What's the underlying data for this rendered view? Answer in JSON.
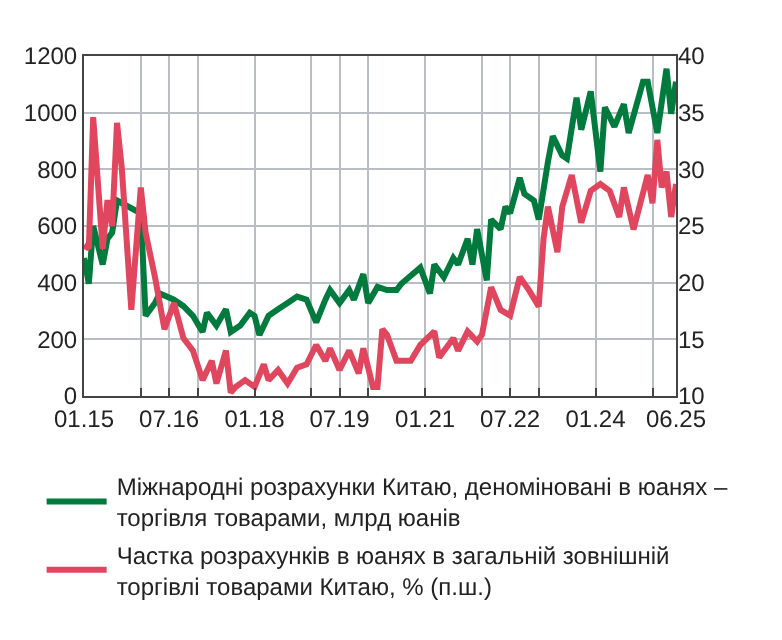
{
  "chart_data": {
    "type": "line",
    "xlim": [
      "2015-01",
      "2025-06"
    ],
    "xticks": [
      {
        "value": "2015-01",
        "label": "01.15"
      },
      {
        "value": "2016-01",
        "label": null
      },
      {
        "value": "2016-07",
        "label": "07.16"
      },
      {
        "value": "2017-01",
        "label": null
      },
      {
        "value": "2018-01",
        "label": "01.18"
      },
      {
        "value": "2019-01",
        "label": null
      },
      {
        "value": "2019-07",
        "label": "07.19"
      },
      {
        "value": "2020-01",
        "label": null
      },
      {
        "value": "2021-01",
        "label": "01.21"
      },
      {
        "value": "2022-01",
        "label": null
      },
      {
        "value": "2022-07",
        "label": "07.22"
      },
      {
        "value": "2023-01",
        "label": null
      },
      {
        "value": "2024-01",
        "label": "01.24"
      },
      {
        "value": "2025-01",
        "label": null
      },
      {
        "value": "2025-06",
        "label": "06.25"
      }
    ],
    "ylim": [
      0,
      1200
    ],
    "yticks": [
      0,
      200,
      400,
      600,
      800,
      1000,
      1200
    ],
    "y2lim": [
      10,
      40
    ],
    "y2ticks": [
      10,
      15,
      20,
      25,
      30,
      35,
      40
    ],
    "grid": true,
    "legend": "bottom",
    "line_style": "solid",
    "series": [
      {
        "name": "Міжнародні розрахунки Китаю, деноміновані в юанях – торгівля товарами, млрд юанів",
        "color": "#007a3d",
        "x": [
          "2015-01",
          "2015-02",
          "2015-03",
          "2015-05",
          "2015-06",
          "2015-07",
          "2015-08",
          "2016-01",
          "2016-02",
          "2016-04",
          "2016-05",
          "2016-08",
          "2016-10",
          "2016-12",
          "2017-02",
          "2017-03",
          "2017-05",
          "2017-07",
          "2017-08",
          "2017-10",
          "2017-12",
          "2018-01",
          "2018-02",
          "2018-04",
          "2018-06",
          "2018-08",
          "2018-10",
          "2018-12",
          "2019-02",
          "2019-04",
          "2019-05",
          "2019-07",
          "2019-09",
          "2019-10",
          "2019-12",
          "2020-01",
          "2020-03",
          "2020-05",
          "2020-07",
          "2020-08",
          "2020-12",
          "2021-02",
          "2021-03",
          "2021-05",
          "2021-07",
          "2021-08",
          "2021-10",
          "2021-11",
          "2021-12",
          "2022-02",
          "2022-03",
          "2022-05",
          "2022-06",
          "2022-07",
          "2022-09",
          "2022-10",
          "2022-12",
          "2023-01",
          "2023-03",
          "2023-04",
          "2023-06",
          "2023-07",
          "2023-09",
          "2023-10",
          "2023-12",
          "2024-02",
          "2024-03",
          "2024-05",
          "2024-07",
          "2024-08",
          "2024-11",
          "2024-12",
          "2025-02",
          "2025-04",
          "2025-05",
          "2025-06"
        ],
        "values": [
          487,
          396,
          600,
          464,
          555,
          577,
          690,
          645,
          283,
          328,
          362,
          340,
          317,
          283,
          226,
          294,
          249,
          306,
          226,
          249,
          294,
          283,
          215,
          283,
          306,
          328,
          351,
          340,
          260,
          340,
          374,
          328,
          374,
          340,
          430,
          328,
          385,
          374,
          374,
          396,
          453,
          362,
          464,
          419,
          487,
          464,
          555,
          464,
          589,
          408,
          623,
          589,
          668,
          645,
          770,
          713,
          690,
          623,
          826,
          917,
          849,
          838,
          1053,
          940,
          1075,
          792,
          1019,
          951,
          1030,
          928,
          1109,
          1109,
          928,
          1155,
          996,
          1109
        ]
      },
      {
        "name": "Частка розрахунків в юанях в загальній зовнішній торгівлі товарами Китаю, % (п.ш.)",
        "color": "#e0475f",
        "axis": "y2",
        "x": [
          "2015-01",
          "2015-02",
          "2015-03",
          "2015-05",
          "2015-06",
          "2015-07",
          "2015-08",
          "2015-09",
          "2015-11",
          "2016-01",
          "2016-02",
          "2016-04",
          "2016-06",
          "2016-08",
          "2016-10",
          "2016-12",
          "2017-02",
          "2017-04",
          "2017-05",
          "2017-07",
          "2017-08",
          "2017-09",
          "2017-11",
          "2018-01",
          "2018-03",
          "2018-04",
          "2018-06",
          "2018-08",
          "2018-10",
          "2018-12",
          "2019-02",
          "2019-04",
          "2019-05",
          "2019-07",
          "2019-09",
          "2019-11",
          "2019-12",
          "2020-02",
          "2020-03",
          "2020-04",
          "2020-05",
          "2020-07",
          "2020-08",
          "2020-10",
          "2020-12",
          "2021-03",
          "2021-04",
          "2021-07",
          "2021-08",
          "2021-10",
          "2021-12",
          "2022-01",
          "2022-03",
          "2022-05",
          "2022-07",
          "2022-09",
          "2022-11",
          "2023-01",
          "2023-02",
          "2023-03",
          "2023-05",
          "2023-06",
          "2023-08",
          "2023-10",
          "2023-12",
          "2024-02",
          "2024-04",
          "2024-06",
          "2024-07",
          "2024-09",
          "2024-12",
          "2025-01",
          "2025-02",
          "2025-03",
          "2025-04",
          "2025-05",
          "2025-06"
        ],
        "values": [
          23.3,
          23.0,
          34.6,
          23.0,
          27.3,
          25.0,
          34.1,
          30.1,
          17.6,
          28.4,
          24.4,
          20.5,
          15.9,
          18.2,
          15.1,
          14.0,
          11.4,
          13.1,
          11.1,
          14.0,
          10.3,
          10.8,
          11.4,
          10.8,
          12.8,
          11.4,
          12.3,
          11.1,
          12.5,
          12.8,
          14.5,
          13.1,
          14.2,
          12.3,
          14.0,
          12.0,
          14.2,
          10.8,
          10.8,
          15.9,
          15.4,
          13.1,
          13.1,
          13.1,
          14.5,
          15.7,
          13.4,
          15.1,
          14.0,
          15.7,
          14.8,
          15.4,
          19.6,
          17.6,
          17.1,
          20.5,
          19.3,
          17.9,
          23.9,
          26.7,
          22.7,
          26.7,
          29.5,
          25.3,
          28.1,
          28.7,
          28.1,
          25.8,
          28.4,
          24.7,
          29.5,
          27.0,
          32.6,
          28.4,
          29.8,
          25.8,
          28.7
        ]
      }
    ]
  }
}
